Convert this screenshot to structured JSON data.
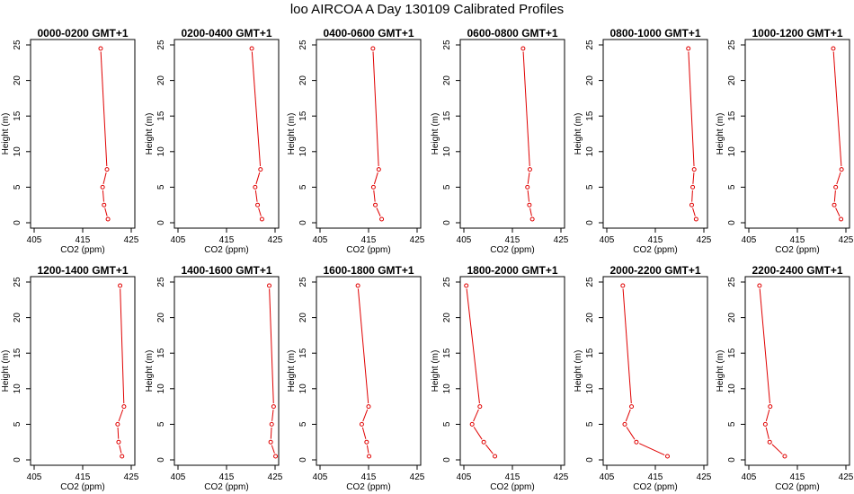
{
  "title": "loo AIRCOA A  Day 130109  Calibrated Profiles",
  "colors": {
    "series": "#e00000",
    "axis": "#000000",
    "background": "#ffffff"
  },
  "chart_data": {
    "type": "line",
    "xlabel": "CO2 (ppm)",
    "ylabel": "Height (m)",
    "xlim": [
      405,
      425
    ],
    "ylim": [
      0,
      25
    ],
    "xticks": [
      405,
      415,
      425
    ],
    "yticks": [
      0,
      5,
      10,
      15,
      20,
      25
    ],
    "heights": [
      0.5,
      2.5,
      5,
      7.5,
      24.5
    ],
    "panels": [
      {
        "title": "0000-0200 GMT+1",
        "x": [
          420.2,
          419.4,
          419.1,
          420.0,
          418.7
        ]
      },
      {
        "title": "0200-0400 GMT+1",
        "x": [
          422.3,
          421.4,
          420.9,
          422.0,
          420.2
        ]
      },
      {
        "title": "0400-0600 GMT+1",
        "x": [
          417.7,
          416.4,
          416.0,
          417.1,
          415.9
        ]
      },
      {
        "title": "0600-0800 GMT+1",
        "x": [
          419.1,
          418.5,
          418.1,
          418.6,
          417.2
        ]
      },
      {
        "title": "0800-1000 GMT+1",
        "x": [
          423.4,
          422.5,
          422.7,
          423.0,
          421.8
        ]
      },
      {
        "title": "1000-1200 GMT+1",
        "x": [
          424.0,
          422.6,
          422.9,
          424.1,
          422.4
        ]
      },
      {
        "title": "1200-1400 GMT+1",
        "x": [
          423.1,
          422.4,
          422.2,
          423.5,
          422.7
        ]
      },
      {
        "title": "1400-1600 GMT+1",
        "x": [
          425.1,
          424.1,
          424.3,
          424.7,
          423.8
        ]
      },
      {
        "title": "1600-1800 GMT+1",
        "x": [
          415.1,
          414.6,
          413.6,
          415.0,
          412.8
        ]
      },
      {
        "title": "1800-2000 GMT+1",
        "x": [
          411.4,
          409.1,
          406.7,
          408.3,
          405.5
        ]
      },
      {
        "title": "2000-2200 GMT+1",
        "x": [
          417.5,
          411.1,
          408.7,
          410.1,
          408.3
        ]
      },
      {
        "title": "2200-2400 GMT+1",
        "x": [
          412.4,
          409.3,
          408.4,
          409.4,
          407.2
        ]
      }
    ]
  }
}
